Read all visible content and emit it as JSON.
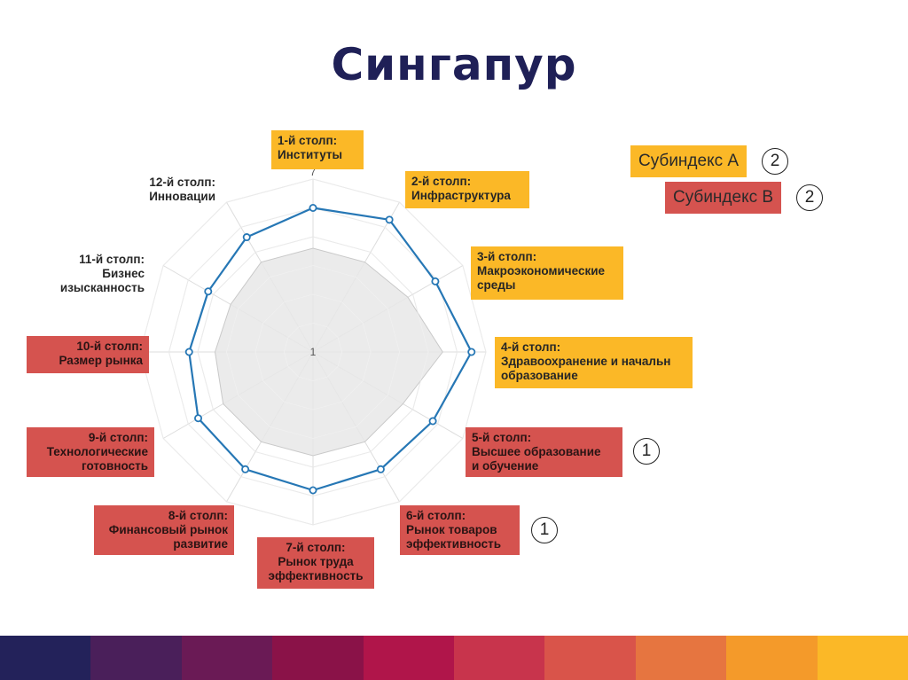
{
  "title": "Сингапур",
  "chart_data": {
    "type": "radar",
    "axis_max_label": "7",
    "axis_min_label": "1",
    "rmin": 1,
    "rmax": 7,
    "categories": [
      "1-й столп:\nИнституты",
      "2-й столп:\nИнфраструктура",
      "3-й столп:\nМакроэкономические\nсреды",
      "4-й столп:\nЗдравоохранение и начальн\nобразование",
      "5-й столп:\nВысшее образование\nи обучение",
      "6-й столп:\nРынок товаров\nэффективность",
      "7-й столп:\nРынок труда\nэффективность",
      "8-й столп:\nФинансовый рынок\nразвитие",
      "9-й столп:\nТехнологические\nготовность",
      "10-й столп:\nРазмер рынка",
      "11-й столп:\nБизнес\nизысканность",
      "12-й столп:\nИнновации"
    ],
    "category_group": [
      "A",
      "A",
      "A",
      "A",
      "B",
      "B",
      "B",
      "B",
      "B",
      "B",
      "plain",
      "plain"
    ],
    "series": [
      {
        "values": [
          6.0,
          6.3,
          5.9,
          6.5,
          5.8,
          5.7,
          5.8,
          5.7,
          5.6,
          5.3,
          5.2,
          5.6
        ]
      },
      {
        "values": [
          4.6,
          4.6,
          4.8,
          5.5,
          4.6,
          4.6,
          4.6,
          4.6,
          4.6,
          4.4,
          4.3,
          4.6
        ]
      }
    ],
    "colors": {
      "line": "#2677b5",
      "area": "#e7e7e7",
      "area_stroke": "#c9c9c9",
      "grid": "#dddddd"
    }
  },
  "legend": [
    {
      "label": "Субиндекс А",
      "group": "A",
      "badge": "2"
    },
    {
      "label": "Субиндекс В",
      "group": "B",
      "badge": "2"
    }
  ],
  "markers": [
    {
      "pillar": "5-й столп",
      "badge": "1"
    },
    {
      "pillar": "6-й столп",
      "badge": "1"
    }
  ],
  "colors": {
    "subindex_a": "#fbb827",
    "subindex_b": "#d5534f",
    "title": "#1f2057",
    "strip": [
      "#23225a",
      "#4a1f5a",
      "#6a1a55",
      "#8a1248",
      "#b0154a",
      "#c8344c",
      "#d9544a",
      "#e67540",
      "#f49a2a",
      "#fbb827"
    ]
  }
}
